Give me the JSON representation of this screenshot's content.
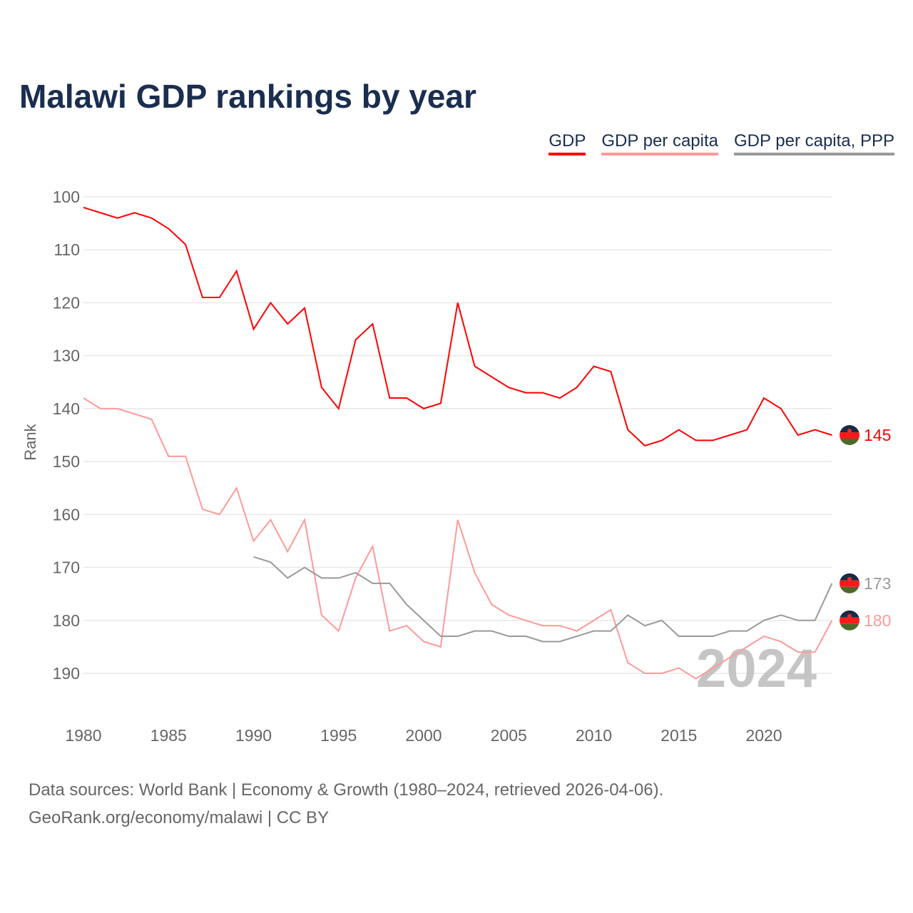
{
  "chart_data": {
    "type": "line",
    "title": "Malawi GDP rankings by year",
    "ylabel": "Rank",
    "xlabel": "",
    "ylim": [
      198,
      97
    ],
    "y_inverted": true,
    "yticks": [
      100,
      110,
      120,
      130,
      140,
      150,
      160,
      170,
      180,
      190
    ],
    "xticks": [
      1980,
      1985,
      1990,
      1995,
      2000,
      2005,
      2010,
      2015,
      2020
    ],
    "xlim": [
      1980,
      2024
    ],
    "grid": true,
    "legend_position": "top-right",
    "watermark_year": "2024",
    "x": [
      1980,
      1981,
      1982,
      1983,
      1984,
      1985,
      1986,
      1987,
      1988,
      1989,
      1990,
      1991,
      1992,
      1993,
      1994,
      1995,
      1996,
      1997,
      1998,
      1999,
      2000,
      2001,
      2002,
      2003,
      2004,
      2005,
      2006,
      2007,
      2008,
      2009,
      2010,
      2011,
      2012,
      2013,
      2014,
      2015,
      2016,
      2017,
      2018,
      2019,
      2020,
      2021,
      2022,
      2023,
      2024
    ],
    "series": [
      {
        "name": "GDP",
        "color": "#ff0000",
        "end_label": "145",
        "values": [
          102,
          103,
          104,
          103,
          104,
          106,
          109,
          119,
          119,
          114,
          125,
          120,
          124,
          121,
          136,
          140,
          127,
          124,
          138,
          138,
          140,
          139,
          120,
          132,
          134,
          136,
          137,
          137,
          138,
          136,
          132,
          133,
          144,
          147,
          146,
          144,
          146,
          146,
          145,
          144,
          138,
          140,
          145,
          144,
          145
        ]
      },
      {
        "name": "GDP per capita",
        "color": "#ff9999",
        "end_label": "180",
        "values": [
          138,
          140,
          140,
          141,
          142,
          149,
          149,
          159,
          160,
          155,
          165,
          161,
          167,
          161,
          179,
          182,
          172,
          166,
          182,
          181,
          184,
          185,
          161,
          171,
          177,
          179,
          180,
          181,
          181,
          182,
          180,
          178,
          188,
          190,
          190,
          189,
          191,
          189,
          187,
          185,
          183,
          184,
          186,
          186,
          180
        ]
      },
      {
        "name": "GDP per capita, PPP",
        "color": "#999999",
        "end_label": "173",
        "values": [
          null,
          null,
          null,
          null,
          null,
          null,
          null,
          null,
          null,
          null,
          168,
          169,
          172,
          170,
          172,
          172,
          171,
          173,
          173,
          177,
          180,
          183,
          183,
          182,
          182,
          183,
          183,
          184,
          184,
          183,
          182,
          182,
          179,
          181,
          180,
          183,
          183,
          183,
          182,
          182,
          180,
          179,
          180,
          180,
          173
        ]
      }
    ]
  },
  "footer": {
    "line1": "Data sources: World Bank | Economy & Growth (1980–2024, retrieved 2026-04-06).",
    "line2": "GeoRank.org/economy/malawi | CC BY"
  }
}
